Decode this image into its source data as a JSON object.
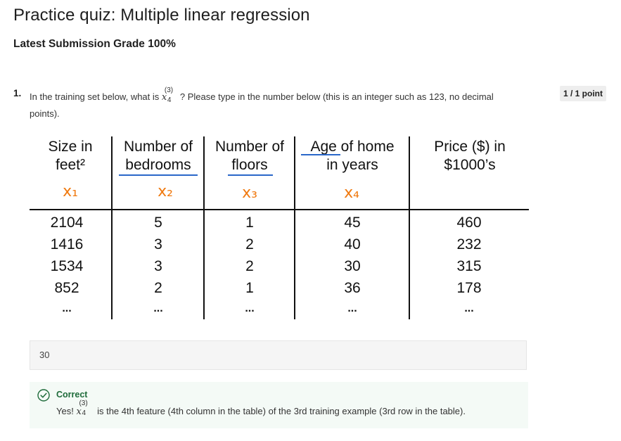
{
  "quiz": {
    "title": "Practice quiz: Multiple linear regression",
    "grade_text": "Latest Submission Grade 100%"
  },
  "question": {
    "number": "1.",
    "prefix": "In the training set below, what is",
    "math_symbol": "x",
    "superscript": "(3)",
    "subscript": "4",
    "suffix": "? Please type in the number below (this is an integer such as 123, no decimal",
    "suffix2": "points).",
    "points": "1 / 1 point"
  },
  "table": {
    "headers": [
      [
        "Size in",
        "feet²"
      ],
      [
        "Number of",
        "bedrooms"
      ],
      [
        "Number of",
        "floors"
      ],
      [
        "Age of home",
        "in years"
      ],
      [
        "Price ($) in",
        "$1000’s"
      ]
    ],
    "feature_labels": [
      "x₁",
      "x₂",
      "x₃",
      "x₄"
    ],
    "rows": [
      [
        "2104",
        "5",
        "1",
        "45",
        "460"
      ],
      [
        "1416",
        "3",
        "2",
        "40",
        "232"
      ],
      [
        "1534",
        "3",
        "2",
        "30",
        "315"
      ],
      [
        "852",
        "2",
        "1",
        "36",
        "178"
      ]
    ],
    "ellipsis": "..."
  },
  "answer": {
    "value": "30"
  },
  "feedback": {
    "status": "Correct",
    "prefix": "Yes!",
    "math_symbol": "x",
    "superscript": "(3)",
    "subscript": "4",
    "text": "is the 4th feature (4th column in the table) of the 3rd training example (3rd row in the table)."
  },
  "colors": {
    "accent_orange": "#f07a10",
    "underline_blue": "#2a67c9",
    "correct_green": "#1e6b3a"
  }
}
